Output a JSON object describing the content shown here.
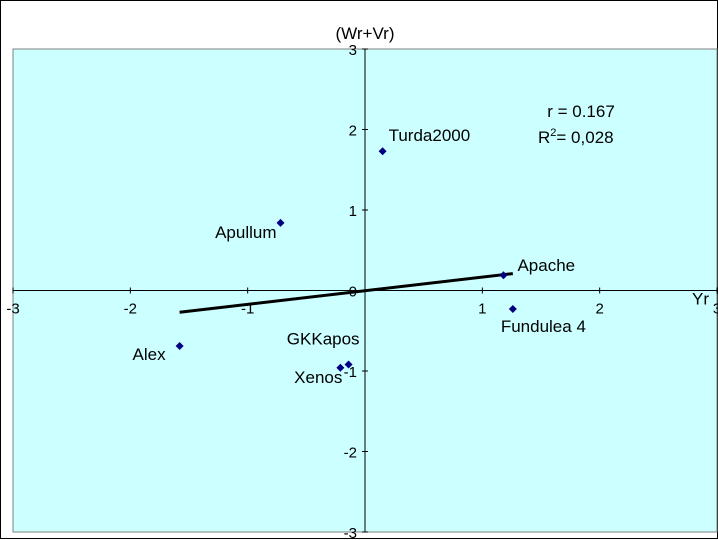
{
  "chart_data": {
    "type": "scatter",
    "title": "",
    "xlabel": "Yr",
    "ylabel": "(Wr+Vr)",
    "xlim": [
      -3,
      3
    ],
    "ylim": [
      -3,
      3
    ],
    "x_ticks": [
      -3,
      -2,
      -1,
      0,
      1,
      2,
      3
    ],
    "y_ticks": [
      -3,
      -2,
      -1,
      0,
      1,
      2,
      3
    ],
    "x_tick_labels": [
      "-3",
      "-2",
      "-1",
      "0",
      "1",
      "2",
      "3"
    ],
    "y_tick_labels": [
      "-3",
      "-2",
      "-1",
      "0",
      "1",
      "2",
      "3"
    ],
    "grid": false,
    "colors": {
      "plot_area": "#ccffff",
      "points": "#000080",
      "regression_line": "#000000"
    },
    "points": [
      {
        "label": "Turda2000",
        "x": 0.15,
        "y": 1.73
      },
      {
        "label": "Apullum",
        "x": -0.72,
        "y": 0.84
      },
      {
        "label": "Apache",
        "x": 1.18,
        "y": 0.19
      },
      {
        "label": "Fundulea 4",
        "x": 1.26,
        "y": -0.23
      },
      {
        "label": "Alex",
        "x": -1.58,
        "y": -0.69
      },
      {
        "label": "GKKapos",
        "x": -0.14,
        "y": -0.92
      },
      {
        "label": "Xenos",
        "x": -0.21,
        "y": -0.96
      }
    ],
    "regression_line": {
      "x": [
        -1.58,
        1.26
      ],
      "y": [
        -0.27,
        0.21
      ]
    },
    "annotations": {
      "r_text": "r = 0.167",
      "r2_prefix": "R",
      "r2_sup": "2",
      "r2_value": "= 0,028"
    }
  }
}
